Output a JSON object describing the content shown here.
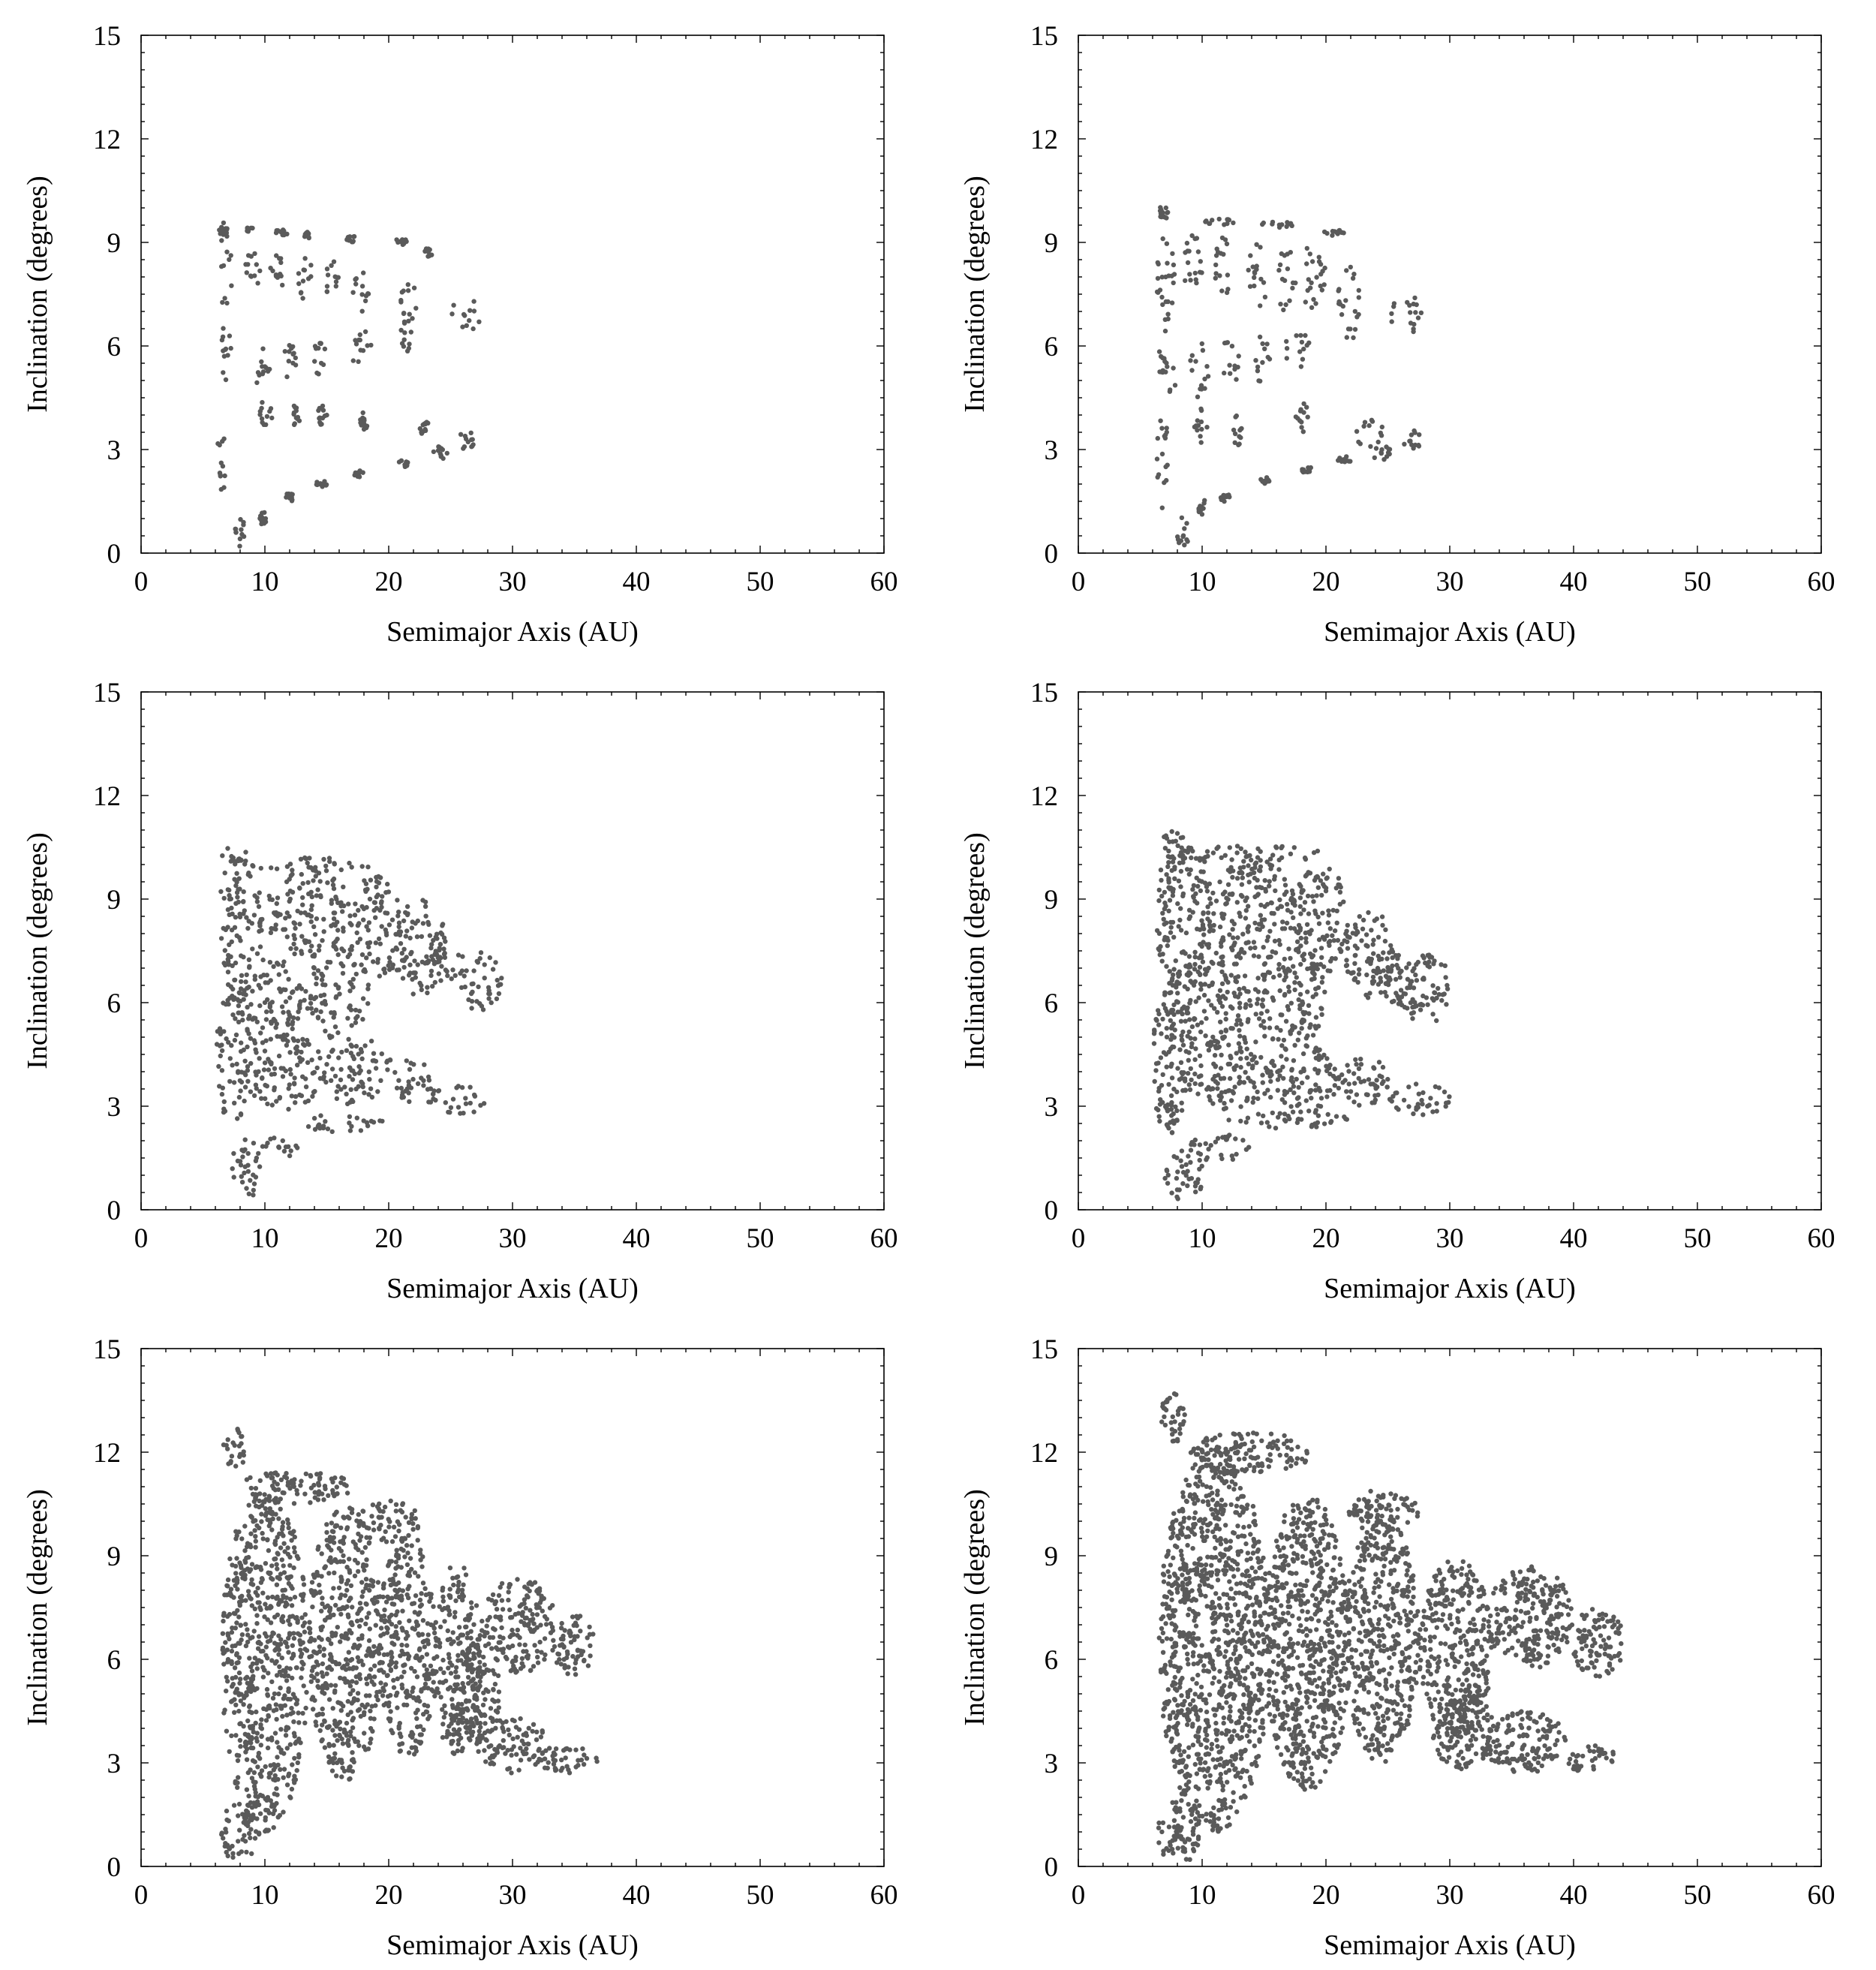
{
  "chart_data": [
    {
      "type": "scatter",
      "panel": "top-left",
      "xlabel": "Semimajor Axis (AU)",
      "ylabel": "Inclination (degrees)",
      "xlim": [
        0,
        60
      ],
      "ylim": [
        0,
        15
      ],
      "xticks": [
        0,
        10,
        20,
        30,
        40,
        50,
        60
      ],
      "yticks": [
        0,
        3,
        6,
        9,
        12,
        15
      ],
      "grid": false,
      "legend": "none",
      "color": "#5a5a5a",
      "style": "sparse clumps",
      "x_extent": [
        6,
        28
      ],
      "y_extent": [
        0.2,
        9.6
      ],
      "clusters": [
        {
          "x": 6.8,
          "y": 8.2,
          "dx": 0.6,
          "dy": 1.2
        },
        {
          "x": 9.0,
          "y": 8.2,
          "dx": 0.6,
          "dy": 0.7
        },
        {
          "x": 11.0,
          "y": 8.1,
          "dx": 0.6,
          "dy": 0.7
        },
        {
          "x": 13.2,
          "y": 8.0,
          "dx": 0.6,
          "dy": 0.7
        },
        {
          "x": 15.4,
          "y": 7.9,
          "dx": 0.6,
          "dy": 0.6
        },
        {
          "x": 18.0,
          "y": 7.6,
          "dx": 0.9,
          "dy": 0.6
        },
        {
          "x": 21.6,
          "y": 7.3,
          "dx": 0.7,
          "dy": 0.6
        },
        {
          "x": 26.2,
          "y": 6.9,
          "dx": 1.2,
          "dy": 0.5
        },
        {
          "x": 21.5,
          "y": 6.3,
          "dx": 0.6,
          "dy": 0.5
        },
        {
          "x": 17.6,
          "y": 6.0,
          "dx": 1.0,
          "dy": 0.5
        },
        {
          "x": 14.4,
          "y": 5.6,
          "dx": 0.6,
          "dy": 0.5
        },
        {
          "x": 12.0,
          "y": 5.5,
          "dx": 0.5,
          "dy": 0.6
        },
        {
          "x": 9.8,
          "y": 5.4,
          "dx": 0.6,
          "dy": 0.7
        },
        {
          "x": 6.9,
          "y": 5.7,
          "dx": 0.5,
          "dy": 1.0
        },
        {
          "x": 6.4,
          "y": 2.6,
          "dx": 0.4,
          "dy": 1.2
        },
        {
          "x": 10.0,
          "y": 4.0,
          "dx": 0.6,
          "dy": 0.4
        },
        {
          "x": 12.5,
          "y": 4.0,
          "dx": 0.4,
          "dy": 0.3
        },
        {
          "x": 14.6,
          "y": 4.0,
          "dx": 0.4,
          "dy": 0.3
        },
        {
          "x": 18.0,
          "y": 3.8,
          "dx": 0.4,
          "dy": 0.3
        },
        {
          "x": 22.8,
          "y": 3.6,
          "dx": 0.5,
          "dy": 0.3
        },
        {
          "x": 26.3,
          "y": 3.3,
          "dx": 0.8,
          "dy": 0.3
        },
        {
          "x": 24.2,
          "y": 2.9,
          "dx": 0.6,
          "dy": 0.2
        },
        {
          "x": 21.2,
          "y": 2.6,
          "dx": 0.4,
          "dy": 0.1
        },
        {
          "x": 17.6,
          "y": 2.3,
          "dx": 0.4,
          "dy": 0.1
        },
        {
          "x": 14.6,
          "y": 2.0,
          "dx": 0.5,
          "dy": 0.1
        },
        {
          "x": 12.0,
          "y": 1.6,
          "dx": 0.4,
          "dy": 0.15
        },
        {
          "x": 9.8,
          "y": 1.0,
          "dx": 0.4,
          "dy": 0.2
        },
        {
          "x": 8.0,
          "y": 0.6,
          "dx": 0.4,
          "dy": 0.4
        },
        {
          "x": 6.6,
          "y": 9.4,
          "dx": 0.4,
          "dy": 0.2
        },
        {
          "x": 8.7,
          "y": 9.4,
          "dx": 0.3,
          "dy": 0.1
        },
        {
          "x": 11.4,
          "y": 9.3,
          "dx": 0.5,
          "dy": 0.1
        },
        {
          "x": 13.4,
          "y": 9.2,
          "dx": 0.3,
          "dy": 0.1
        },
        {
          "x": 17.0,
          "y": 9.1,
          "dx": 0.4,
          "dy": 0.1
        },
        {
          "x": 21.0,
          "y": 9.0,
          "dx": 0.6,
          "dy": 0.1
        },
        {
          "x": 23.2,
          "y": 8.7,
          "dx": 0.3,
          "dy": 0.15
        }
      ]
    },
    {
      "type": "scatter",
      "panel": "top-right",
      "xlabel": "Semimajor Axis (AU)",
      "ylabel": "Inclination (degrees)",
      "xlim": [
        0,
        60
      ],
      "ylim": [
        0,
        15
      ],
      "xticks": [
        0,
        10,
        20,
        30,
        40,
        50,
        60
      ],
      "yticks": [
        0,
        3,
        6,
        9,
        12,
        15
      ],
      "grid": false,
      "legend": "none",
      "color": "#5a5a5a",
      "style": "clumps",
      "x_extent": [
        6,
        28.5
      ],
      "y_extent": [
        0.1,
        10.2
      ],
      "clusters": [
        {
          "x": 7.0,
          "y": 8.3,
          "dx": 0.8,
          "dy": 1.7
        },
        {
          "x": 9.3,
          "y": 8.3,
          "dx": 0.8,
          "dy": 1.1
        },
        {
          "x": 11.8,
          "y": 8.2,
          "dx": 0.8,
          "dy": 1.0
        },
        {
          "x": 14.5,
          "y": 8.1,
          "dx": 0.8,
          "dy": 1.0
        },
        {
          "x": 16.8,
          "y": 8.0,
          "dx": 0.8,
          "dy": 1.0
        },
        {
          "x": 19.0,
          "y": 7.9,
          "dx": 1.0,
          "dy": 1.1
        },
        {
          "x": 21.8,
          "y": 7.3,
          "dx": 0.9,
          "dy": 1.2
        },
        {
          "x": 26.5,
          "y": 6.9,
          "dx": 1.4,
          "dy": 0.6
        },
        {
          "x": 17.6,
          "y": 5.9,
          "dx": 1.1,
          "dy": 0.6
        },
        {
          "x": 14.8,
          "y": 5.6,
          "dx": 0.7,
          "dy": 0.7
        },
        {
          "x": 12.3,
          "y": 5.5,
          "dx": 0.7,
          "dy": 0.8
        },
        {
          "x": 9.8,
          "y": 5.4,
          "dx": 0.8,
          "dy": 0.9
        },
        {
          "x": 7.2,
          "y": 5.4,
          "dx": 0.7,
          "dy": 1.2
        },
        {
          "x": 6.8,
          "y": 2.7,
          "dx": 0.6,
          "dy": 1.4
        },
        {
          "x": 9.8,
          "y": 3.7,
          "dx": 0.6,
          "dy": 0.6
        },
        {
          "x": 12.8,
          "y": 3.6,
          "dx": 0.5,
          "dy": 0.5
        },
        {
          "x": 18.0,
          "y": 3.9,
          "dx": 0.6,
          "dy": 0.5
        },
        {
          "x": 23.5,
          "y": 3.5,
          "dx": 1.3,
          "dy": 0.5
        },
        {
          "x": 27.0,
          "y": 3.3,
          "dx": 0.8,
          "dy": 0.3
        },
        {
          "x": 24.5,
          "y": 2.9,
          "dx": 0.8,
          "dy": 0.2
        },
        {
          "x": 21.5,
          "y": 2.7,
          "dx": 0.6,
          "dy": 0.1
        },
        {
          "x": 18.5,
          "y": 2.4,
          "dx": 0.5,
          "dy": 0.1
        },
        {
          "x": 15.3,
          "y": 2.1,
          "dx": 0.6,
          "dy": 0.1
        },
        {
          "x": 12.0,
          "y": 1.6,
          "dx": 0.5,
          "dy": 0.15
        },
        {
          "x": 10.0,
          "y": 1.3,
          "dx": 0.3,
          "dy": 0.3
        },
        {
          "x": 8.4,
          "y": 0.6,
          "dx": 0.5,
          "dy": 0.5
        },
        {
          "x": 6.8,
          "y": 9.9,
          "dx": 0.5,
          "dy": 0.2
        },
        {
          "x": 11.5,
          "y": 9.6,
          "dx": 1.5,
          "dy": 0.1
        },
        {
          "x": 16.0,
          "y": 9.5,
          "dx": 1.5,
          "dy": 0.1
        },
        {
          "x": 20.5,
          "y": 9.3,
          "dx": 1.0,
          "dy": 0.1
        }
      ]
    },
    {
      "type": "scatter",
      "panel": "middle-left",
      "xlabel": "Semimajor Axis (AU)",
      "ylabel": "Inclination (degrees)",
      "xlim": [
        0,
        60
      ],
      "ylim": [
        0,
        15
      ],
      "xticks": [
        0,
        10,
        20,
        30,
        40,
        50,
        60
      ],
      "yticks": [
        0,
        3,
        6,
        9,
        12,
        15
      ],
      "grid": false,
      "legend": "none",
      "color": "#5a5a5a",
      "style": "dense bands",
      "x_extent": [
        6,
        29.5
      ],
      "y_extent": [
        0.2,
        10.7
      ],
      "clusters": [
        {
          "x": 8.0,
          "y": 8.4,
          "dx": 1.8,
          "dy": 1.9
        },
        {
          "x": 13.5,
          "y": 8.6,
          "dx": 3.6,
          "dy": 1.3
        },
        {
          "x": 19.0,
          "y": 8.2,
          "dx": 2.2,
          "dy": 1.5
        },
        {
          "x": 22.5,
          "y": 7.6,
          "dx": 2.2,
          "dy": 1.4
        },
        {
          "x": 27.5,
          "y": 6.6,
          "dx": 1.7,
          "dy": 0.9
        },
        {
          "x": 24.5,
          "y": 7.2,
          "dx": 1.5,
          "dy": 0.8
        },
        {
          "x": 10.5,
          "y": 6.0,
          "dx": 3.0,
          "dy": 1.3
        },
        {
          "x": 16.0,
          "y": 6.3,
          "dx": 2.4,
          "dy": 1.4
        },
        {
          "x": 7.4,
          "y": 4.6,
          "dx": 1.3,
          "dy": 2.2
        },
        {
          "x": 11.5,
          "y": 4.0,
          "dx": 3.5,
          "dy": 1.1
        },
        {
          "x": 17.5,
          "y": 4.0,
          "dx": 2.8,
          "dy": 1.0
        },
        {
          "x": 22.0,
          "y": 3.8,
          "dx": 1.6,
          "dy": 0.7
        },
        {
          "x": 25.5,
          "y": 3.2,
          "dx": 2.5,
          "dy": 0.45
        },
        {
          "x": 16.0,
          "y": 2.5,
          "dx": 4.0,
          "dy": 0.25
        },
        {
          "x": 11.0,
          "y": 1.8,
          "dx": 2.2,
          "dy": 0.3
        },
        {
          "x": 8.5,
          "y": 1.2,
          "dx": 1.3,
          "dy": 0.9
        },
        {
          "x": 13.5,
          "y": 10.0,
          "dx": 6.0,
          "dy": 0.2
        },
        {
          "x": 7.5,
          "y": 10.3,
          "dx": 1.0,
          "dy": 0.3
        }
      ]
    },
    {
      "type": "scatter",
      "panel": "middle-right",
      "xlabel": "Semimajor Axis (AU)",
      "ylabel": "Inclination (degrees)",
      "xlim": [
        0,
        60
      ],
      "ylim": [
        0,
        15
      ],
      "xticks": [
        0,
        10,
        20,
        30,
        40,
        50,
        60
      ],
      "yticks": [
        0,
        3,
        6,
        9,
        12,
        15
      ],
      "grid": false,
      "legend": "none",
      "color": "#5a5a5a",
      "style": "dense bands",
      "x_extent": [
        6,
        31
      ],
      "y_extent": [
        0.1,
        11.1
      ],
      "clusters": [
        {
          "x": 8.5,
          "y": 8.6,
          "dx": 2.3,
          "dy": 2.2
        },
        {
          "x": 14.0,
          "y": 8.7,
          "dx": 3.6,
          "dy": 1.5
        },
        {
          "x": 19.5,
          "y": 8.4,
          "dx": 2.4,
          "dy": 1.6
        },
        {
          "x": 23.5,
          "y": 7.4,
          "dx": 2.0,
          "dy": 1.3
        },
        {
          "x": 28.0,
          "y": 6.4,
          "dx": 2.4,
          "dy": 1.0
        },
        {
          "x": 25.5,
          "y": 6.8,
          "dx": 1.5,
          "dy": 0.8
        },
        {
          "x": 10.5,
          "y": 6.0,
          "dx": 3.5,
          "dy": 1.5
        },
        {
          "x": 17.0,
          "y": 6.1,
          "dx": 3.0,
          "dy": 1.5
        },
        {
          "x": 7.4,
          "y": 4.4,
          "dx": 1.4,
          "dy": 2.4
        },
        {
          "x": 12.0,
          "y": 4.0,
          "dx": 3.8,
          "dy": 1.1
        },
        {
          "x": 18.0,
          "y": 3.8,
          "dx": 3.2,
          "dy": 1.0
        },
        {
          "x": 23.0,
          "y": 3.7,
          "dx": 2.0,
          "dy": 0.8
        },
        {
          "x": 27.5,
          "y": 3.2,
          "dx": 2.6,
          "dy": 0.45
        },
        {
          "x": 17.0,
          "y": 2.6,
          "dx": 5.0,
          "dy": 0.25
        },
        {
          "x": 11.5,
          "y": 1.8,
          "dx": 2.6,
          "dy": 0.4
        },
        {
          "x": 8.5,
          "y": 1.0,
          "dx": 1.6,
          "dy": 0.8
        },
        {
          "x": 14.0,
          "y": 10.3,
          "dx": 6.0,
          "dy": 0.25
        },
        {
          "x": 7.5,
          "y": 10.6,
          "dx": 1.0,
          "dy": 0.4
        }
      ]
    },
    {
      "type": "scatter",
      "panel": "bottom-left",
      "xlabel": "Semimajor Axis (AU)",
      "ylabel": "Inclination (degrees)",
      "xlim": [
        0,
        60
      ],
      "ylim": [
        0,
        15
      ],
      "xticks": [
        0,
        10,
        20,
        30,
        40,
        50,
        60
      ],
      "yticks": [
        0,
        3,
        6,
        9,
        12,
        15
      ],
      "grid": false,
      "legend": "none",
      "color": "#5a5a5a",
      "style": "filled cloud",
      "x_extent": [
        6,
        37.5
      ],
      "y_extent": [
        0.1,
        12.8
      ],
      "clusters": [
        {
          "x": 10.0,
          "y": 6.0,
          "dx": 3.5,
          "dy": 5.0
        },
        {
          "x": 16.5,
          "y": 6.5,
          "dx": 3.0,
          "dy": 4.0
        },
        {
          "x": 21.5,
          "y": 6.4,
          "dx": 2.3,
          "dy": 3.3
        },
        {
          "x": 25.5,
          "y": 6.0,
          "dx": 2.0,
          "dy": 2.8
        },
        {
          "x": 30.5,
          "y": 7.0,
          "dx": 3.0,
          "dy": 1.4
        },
        {
          "x": 35.0,
          "y": 6.4,
          "dx": 1.8,
          "dy": 0.9
        },
        {
          "x": 30.0,
          "y": 3.5,
          "dx": 3.0,
          "dy": 0.8
        },
        {
          "x": 34.5,
          "y": 3.1,
          "dx": 2.5,
          "dy": 0.4
        },
        {
          "x": 27.0,
          "y": 5.0,
          "dx": 2.0,
          "dy": 1.5
        },
        {
          "x": 8.0,
          "y": 1.0,
          "dx": 1.6,
          "dy": 0.9
        },
        {
          "x": 12.5,
          "y": 11.0,
          "dx": 4.5,
          "dy": 0.5
        },
        {
          "x": 7.5,
          "y": 12.1,
          "dx": 1.0,
          "dy": 0.6
        },
        {
          "x": 20.0,
          "y": 10.0,
          "dx": 2.5,
          "dy": 0.6
        }
      ]
    },
    {
      "type": "scatter",
      "panel": "bottom-right",
      "xlabel": "Semimajor Axis (AU)",
      "ylabel": "Inclination (degrees)",
      "xlim": [
        0,
        60
      ],
      "ylim": [
        0,
        15
      ],
      "xticks": [
        0,
        10,
        20,
        30,
        40,
        50,
        60
      ],
      "yticks": [
        0,
        3,
        6,
        9,
        12,
        15
      ],
      "grid": false,
      "legend": "none",
      "color": "#5a5a5a",
      "style": "filled cloud",
      "x_extent": [
        6,
        44.5
      ],
      "y_extent": [
        0.1,
        13.7
      ],
      "clusters": [
        {
          "x": 11.0,
          "y": 6.5,
          "dx": 4.5,
          "dy": 5.5
        },
        {
          "x": 18.5,
          "y": 6.5,
          "dx": 3.5,
          "dy": 4.3
        },
        {
          "x": 24.5,
          "y": 6.6,
          "dx": 3.0,
          "dy": 3.6
        },
        {
          "x": 30.5,
          "y": 6.3,
          "dx": 3.0,
          "dy": 2.6
        },
        {
          "x": 36.5,
          "y": 7.2,
          "dx": 3.5,
          "dy": 1.5
        },
        {
          "x": 42.0,
          "y": 6.5,
          "dx": 2.2,
          "dy": 1.0
        },
        {
          "x": 36.0,
          "y": 3.6,
          "dx": 3.5,
          "dy": 0.9
        },
        {
          "x": 41.5,
          "y": 3.1,
          "dx": 2.2,
          "dy": 0.4
        },
        {
          "x": 31.0,
          "y": 4.0,
          "dx": 2.5,
          "dy": 1.2
        },
        {
          "x": 8.2,
          "y": 1.0,
          "dx": 1.8,
          "dy": 1.0
        },
        {
          "x": 14.0,
          "y": 12.0,
          "dx": 5.0,
          "dy": 0.6
        },
        {
          "x": 7.8,
          "y": 13.0,
          "dx": 1.2,
          "dy": 0.7
        },
        {
          "x": 24.5,
          "y": 10.3,
          "dx": 3.0,
          "dy": 0.6
        }
      ]
    }
  ]
}
